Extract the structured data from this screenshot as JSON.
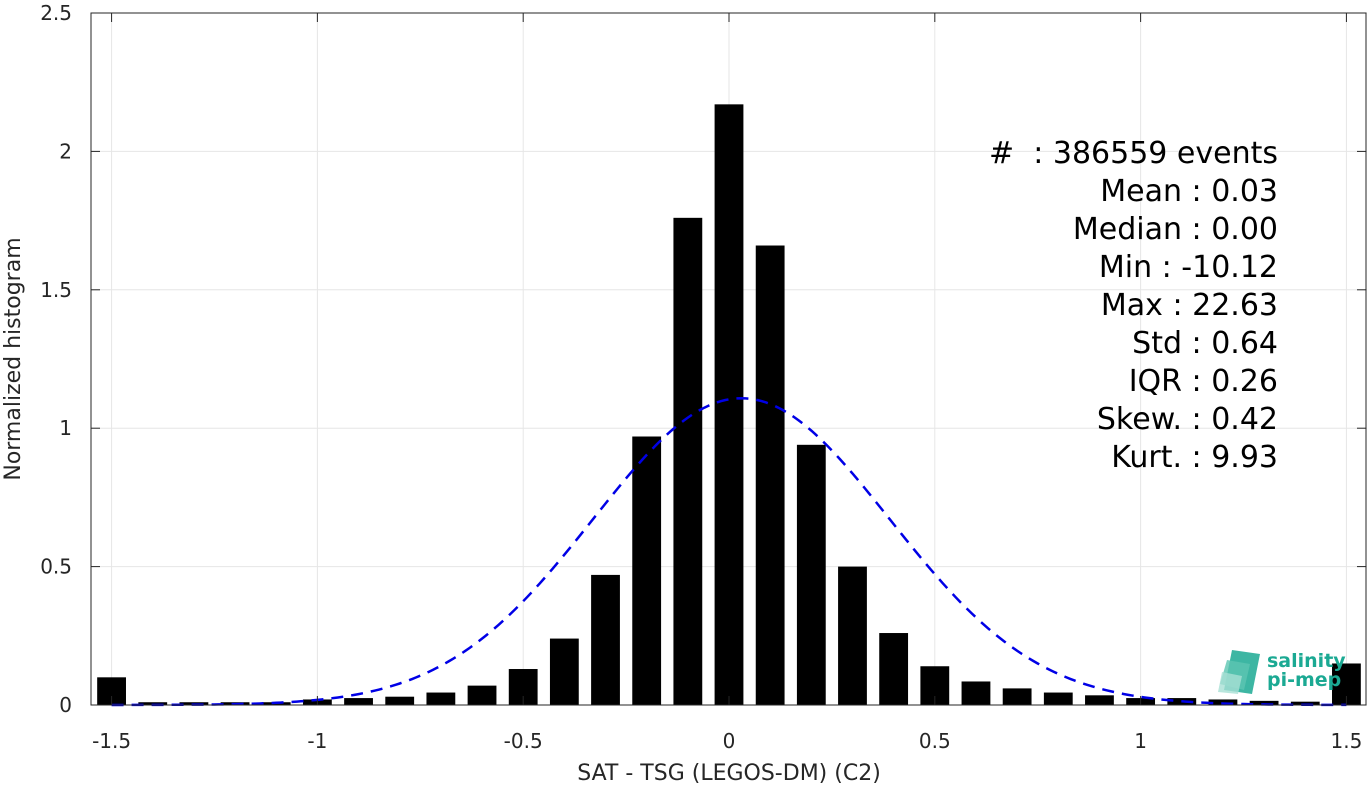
{
  "chart_data": {
    "type": "bar",
    "xlabel": "SAT - TSG (LEGOS-DM) (C2)",
    "ylabel": "Normalized histogram",
    "xlim": [
      -1.55,
      1.55
    ],
    "ylim": [
      0,
      2.5
    ],
    "grid": true,
    "bar_width": 0.07,
    "x_ticks": [
      -1.5,
      -1,
      -0.5,
      0,
      0.5,
      1,
      1.5
    ],
    "x_tick_labels": [
      "-1.5",
      "-1",
      "-0.5",
      "0",
      "0.5",
      "1",
      "1.5"
    ],
    "y_ticks": [
      0,
      0.5,
      1,
      1.5,
      2,
      2.5
    ],
    "y_tick_labels": [
      "0",
      "0.5",
      "1",
      "1.5",
      "2",
      "2.5"
    ],
    "bar_color": "#000000",
    "series": [
      {
        "x": [
          -1.5,
          -1.4,
          -1.3,
          -1.2,
          -1.1,
          -1.0,
          -0.9,
          -0.8,
          -0.7,
          -0.6,
          -0.5,
          -0.4,
          -0.3,
          -0.2,
          -0.1,
          0.0,
          0.1,
          0.2,
          0.3,
          0.4,
          0.5,
          0.6,
          0.7,
          0.8,
          0.9,
          1.0,
          1.1,
          1.2,
          1.3,
          1.4,
          1.5
        ],
        "values": [
          0.1,
          0.01,
          0.01,
          0.01,
          0.01,
          0.02,
          0.025,
          0.03,
          0.045,
          0.07,
          0.13,
          0.24,
          0.47,
          0.97,
          1.76,
          2.17,
          1.66,
          0.94,
          0.5,
          0.26,
          0.14,
          0.085,
          0.06,
          0.045,
          0.035,
          0.025,
          0.025,
          0.02,
          0.015,
          0.012,
          0.15
        ]
      }
    ],
    "fit": {
      "type": "gaussian",
      "mean": 0.03,
      "std": 0.36,
      "color": "#0000e6",
      "style": "dashed"
    },
    "stats": [
      "#  : 386559 events",
      "Mean : 0.03",
      "Median : 0.00",
      "Min : -10.12",
      "Max : 22.63",
      "Std : 0.64",
      "IQR : 0.26",
      "Skew. : 0.42",
      "Kurt. : 9.93"
    ]
  },
  "logo": {
    "line1": "salinity",
    "line2": "pi-mep",
    "color": "#1ba993"
  }
}
